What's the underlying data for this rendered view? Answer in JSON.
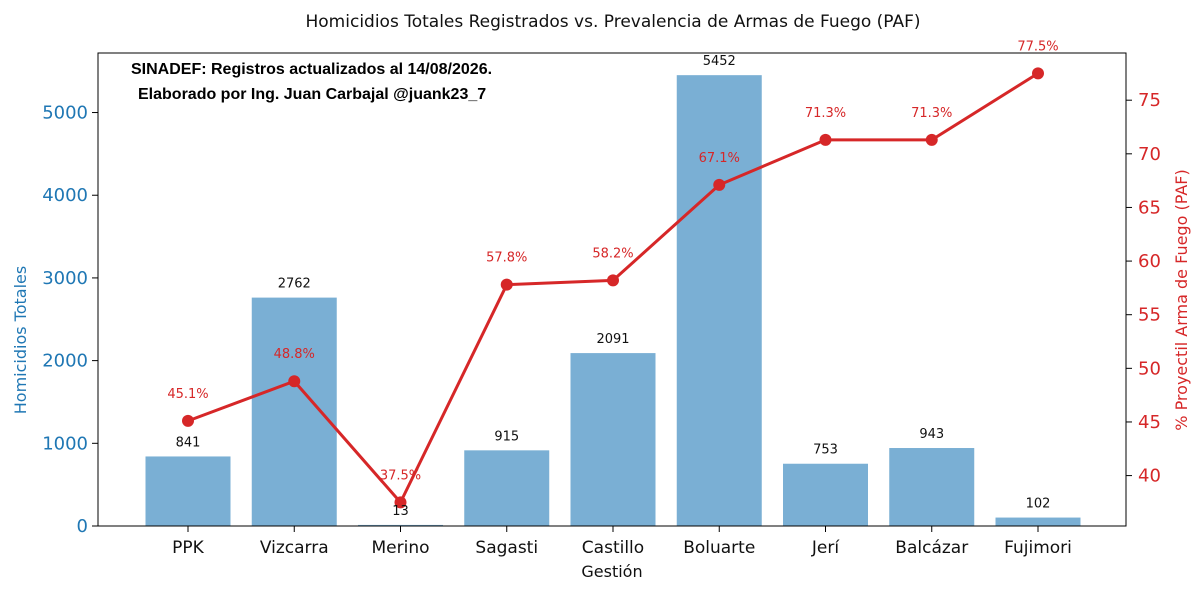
{
  "chart_data": {
    "type": "bar",
    "title": "Homicidios Totales Registrados vs. Prevalencia de Armas de Fuego (PAF)",
    "xlabel": "Gestión",
    "ylabel": "Homicidios Totales",
    "ylabel_right": "% Proyectil Arma de Fuego (PAF)",
    "categories": [
      "PPK",
      "Vizcarra",
      "Merino",
      "Sagasti",
      "Castillo",
      "Boluarte",
      "Jerí",
      "Balcázar",
      "Fujimori"
    ],
    "series": [
      {
        "type": "bar",
        "axis": "left",
        "color": "#7aafd4",
        "values": [
          841,
          2762,
          13,
          915,
          2091,
          5452,
          753,
          943,
          102
        ],
        "labels": [
          "841",
          "2762",
          "13",
          "915",
          "2091",
          "5452",
          "753",
          "943",
          "102"
        ]
      },
      {
        "type": "line",
        "axis": "right",
        "color": "#d62728",
        "values": [
          45.1,
          48.8,
          37.5,
          57.8,
          58.2,
          67.1,
          71.3,
          71.3,
          77.5
        ],
        "labels": [
          "45.1%",
          "48.8%",
          "37.5%",
          "57.8%",
          "58.2%",
          "67.1%",
          "71.3%",
          "71.3%",
          "77.5%"
        ]
      }
    ],
    "ylim": [
      0,
      5720
    ],
    "ylim_right": [
      35.3,
      79.4
    ],
    "yticks": [
      0,
      1000,
      2000,
      3000,
      4000,
      5000
    ],
    "yticks_right": [
      40,
      45,
      50,
      55,
      60,
      65,
      70,
      75
    ],
    "annotation": [
      "SINADEF: Registros actualizados al 14/08/2026.",
      "Elaborado por Ing. Juan Carbajal @juank23_7"
    ],
    "colors": {
      "left_axis": "#1f77b4",
      "right_axis": "#d62728",
      "bar": "#7aafd4",
      "line": "#d62728"
    },
    "grid": false
  }
}
